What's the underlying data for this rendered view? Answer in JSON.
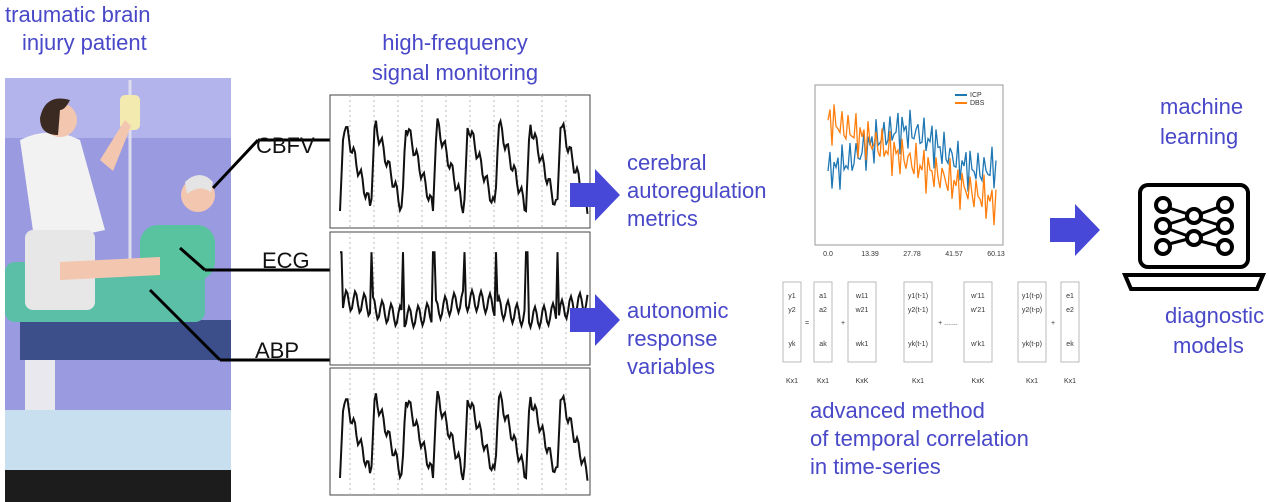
{
  "patient": {
    "title": [
      "traumatic brain",
      "injury patient"
    ],
    "signals": [
      "CBFV",
      "ECG",
      "ABP"
    ]
  },
  "monitoring": {
    "title": [
      "high-frequency",
      "signal monitoring"
    ]
  },
  "outputs": [
    [
      "cerebral",
      "autoregulation",
      "metrics"
    ],
    [
      "autonomic",
      "response",
      "variables"
    ]
  ],
  "plot": {
    "legend": [
      "ICP",
      "DBS"
    ],
    "xlabels": [
      "0.0",
      "13.39",
      "27.78",
      "41.57",
      "60.13"
    ]
  },
  "equation": {
    "columns": [
      [
        "y1",
        "y2",
        "yk"
      ],
      [
        "a1",
        "a2",
        "ak"
      ],
      [
        "w11",
        "w21",
        "wk1"
      ],
      [
        "y1(t-1)",
        "y2(t-1)",
        "yk(t-1)"
      ],
      [
        "w'11",
        "w'21",
        "w'k1"
      ],
      [
        "y1(t-p)",
        "y2(t-p)",
        "yk(t-p)"
      ],
      [
        "e1",
        "e2",
        "ek"
      ]
    ],
    "dims": [
      "Kx1",
      "Kx1",
      "KxK",
      "Kx1",
      "KxK",
      "Kx1",
      "Kx1"
    ],
    "operators": [
      "=",
      "+",
      "+ .......",
      "+"
    ]
  },
  "method": [
    "advanced method",
    "of temporal correlation",
    "in time-series"
  ],
  "ml": {
    "title": [
      "machine",
      "learning"
    ],
    "models": [
      "diagnostic",
      "models"
    ]
  }
}
